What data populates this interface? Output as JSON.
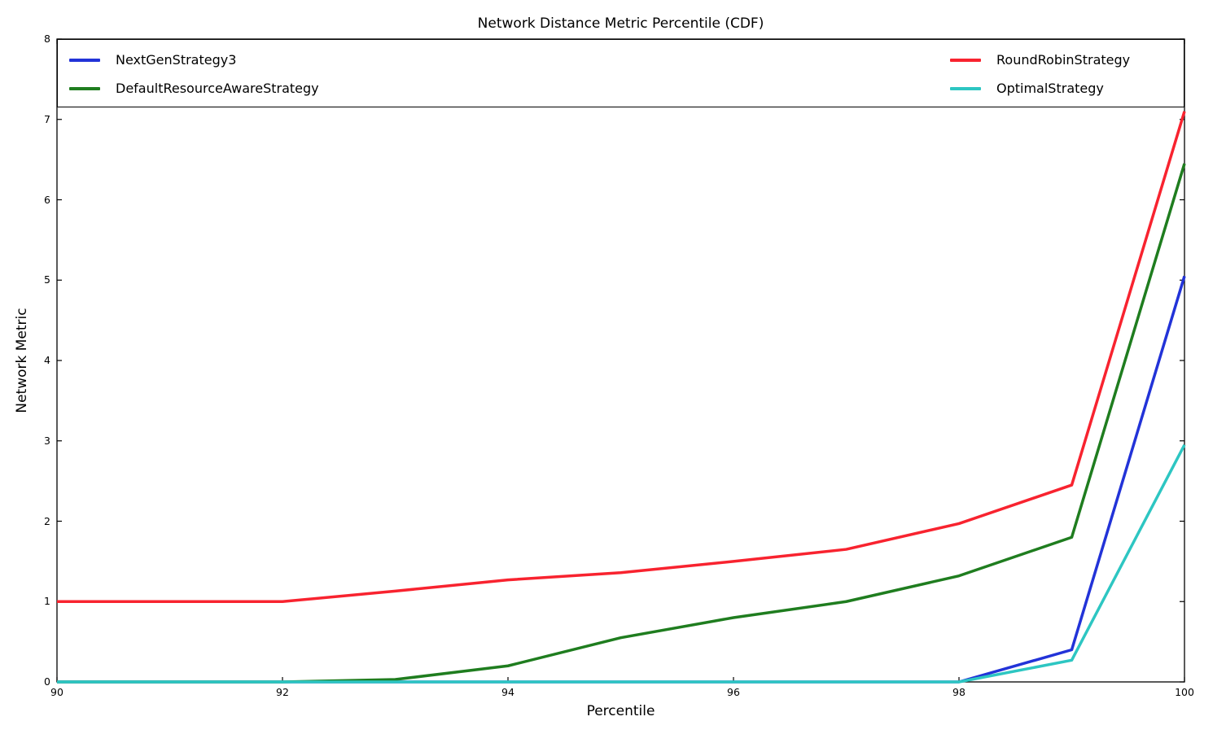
{
  "chart_data": {
    "type": "line",
    "title": "Network Distance Metric Percentile (CDF)",
    "xlabel": "Percentile",
    "ylabel": "Network Metric",
    "x": [
      90,
      91,
      92,
      93,
      94,
      95,
      96,
      97,
      98,
      99,
      100
    ],
    "xlim": [
      90,
      100
    ],
    "ylim": [
      0,
      8
    ],
    "xticks": [
      90,
      92,
      94,
      96,
      98,
      100
    ],
    "yticks": [
      0,
      1,
      2,
      3,
      4,
      5,
      6,
      7,
      8
    ],
    "grid": false,
    "legend": {
      "position": "top-inside",
      "mode": "expand",
      "columns": 2,
      "border_color": "#000000"
    },
    "series": [
      {
        "name": "NextGenStrategy3",
        "color": "#2233d8",
        "values": [
          0,
          0,
          0,
          0,
          0,
          0,
          0,
          0,
          0,
          0.4,
          5.05
        ]
      },
      {
        "name": "DefaultResourceAwareStrategy",
        "color": "#1f7d1f",
        "values": [
          0,
          0,
          0,
          0.03,
          0.2,
          0.55,
          0.8,
          1.0,
          1.32,
          1.8,
          6.45
        ]
      },
      {
        "name": "RoundRobinStrategy",
        "color": "#f8232f",
        "values": [
          1.0,
          1.0,
          1.0,
          1.13,
          1.27,
          1.36,
          1.5,
          1.65,
          1.97,
          2.45,
          7.1
        ]
      },
      {
        "name": "OptimalStrategy",
        "color": "#2dc6c2",
        "values": [
          0,
          0,
          0,
          0,
          0,
          0,
          0,
          0,
          0,
          0.27,
          2.95
        ]
      }
    ]
  }
}
